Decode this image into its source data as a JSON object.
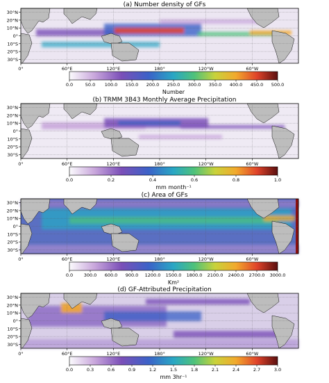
{
  "chart_data": [
    {
      "type": "heatmap",
      "title": "(a) Number density of GFs",
      "colorbar": {
        "label": "Number",
        "ticks": [
          "0.0",
          "50.0",
          "100.0",
          "150.0",
          "200.0",
          "250.0",
          "300.0",
          "350.0",
          "400.0",
          "450.0",
          "500.0"
        ],
        "range": [
          0,
          500
        ]
      },
      "colormap": "plasma-ish",
      "hotspots": "maritime continent, ITCZ bands"
    },
    {
      "type": "heatmap",
      "title": "(b) TRMM 3B43 Monthly Average Precipitation",
      "colorbar": {
        "label": "mm month⁻¹",
        "ticks": [
          "0.0",
          "0.2",
          "0.4",
          "0.6",
          "0.8",
          "1.0"
        ],
        "range": [
          0,
          1
        ]
      },
      "colormap": "plasma-ish",
      "hotspots": "ITCZ, warm pool"
    },
    {
      "type": "heatmap",
      "title": "(c) Area of GFs",
      "colorbar": {
        "label": "Km²",
        "ticks": [
          "0.0",
          "300.0",
          "600.0",
          "900.0",
          "1200.0",
          "1500.0",
          "1800.0",
          "2100.0",
          "2400.0",
          "2700.0",
          "3000.0"
        ],
        "range": [
          0,
          3000
        ]
      },
      "colormap": "plasma-ish",
      "hotspots": "broad tropical belt"
    },
    {
      "type": "heatmap",
      "title": "(d) GF-Attributed Precipitation",
      "colorbar": {
        "label": "mm 3hr⁻¹",
        "ticks": [
          "0.0",
          "0.3",
          "0.6",
          "0.9",
          "1.2",
          "1.5",
          "1.8",
          "2.1",
          "2.4",
          "2.7",
          "3.0"
        ],
        "range": [
          0,
          3
        ]
      },
      "colormap": "plasma-ish",
      "hotspots": "Bay of Bengal, Indian Ocean, west Pacific"
    }
  ],
  "axes": {
    "lat_ticks": [
      "30°N",
      "20°N",
      "10°N",
      "0°",
      "10°S",
      "20°S",
      "30°S"
    ],
    "lat_values": [
      30,
      20,
      10,
      0,
      -10,
      -20,
      -30
    ],
    "lon_ticks": [
      "0°",
      "60°E",
      "120°E",
      "180°",
      "120°W",
      "60°W"
    ],
    "lon_values": [
      0,
      60,
      120,
      180,
      240,
      300
    ],
    "lon_range": [
      0,
      360
    ],
    "lat_range": [
      -35,
      35
    ]
  }
}
